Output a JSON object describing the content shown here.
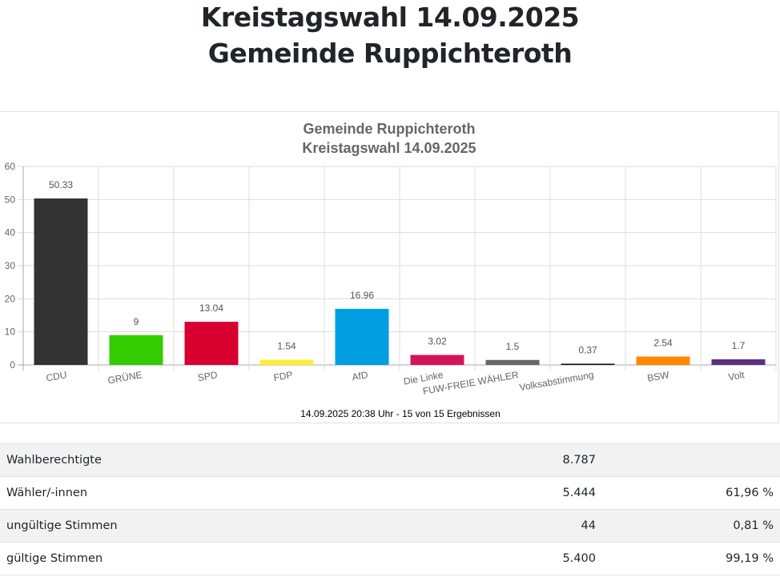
{
  "page": {
    "title_line1": "Kreistagswahl 14.09.2025",
    "title_line2": "Gemeinde Ruppichteroth"
  },
  "chart_data": {
    "type": "bar",
    "title": "Gemeinde Ruppichteroth",
    "subtitle": "Kreistagswahl 14.09.2025",
    "xlabel": "",
    "ylabel": "",
    "ylim": [
      0,
      60
    ],
    "yticks": [
      0,
      10,
      20,
      30,
      40,
      50,
      60
    ],
    "grid": true,
    "categories": [
      "CDU",
      "GRÜNE",
      "SPD",
      "FDP",
      "AfD",
      "Die Linke",
      "FUW-FREIE WÄHLER",
      "Volksabstimmung",
      "BSW",
      "Volt"
    ],
    "values": [
      50.33,
      9,
      13.04,
      1.54,
      16.96,
      3.02,
      1.5,
      0.37,
      2.54,
      1.7
    ],
    "value_labels": [
      "50.33",
      "9",
      "13.04",
      "1.54",
      "16.96",
      "3.02",
      "1.5",
      "0.37",
      "2.54",
      "1.7"
    ],
    "colors": [
      "#333333",
      "#33cc00",
      "#d7002f",
      "#ffed33",
      "#009ee0",
      "#d4145a",
      "#666666",
      "#111111",
      "#ff8800",
      "#5a2e82"
    ],
    "footer": "14.09.2025 20:38 Uhr - 15 von 15 Ergebnissen"
  },
  "stats": {
    "rows": [
      {
        "label": "Wahlberechtigte",
        "count": "8.787",
        "percent": ""
      },
      {
        "label": "Wähler/-innen",
        "count": "5.444",
        "percent": "61,96 %"
      },
      {
        "label": "ungültige Stimmen",
        "count": "44",
        "percent": "0,81 %"
      },
      {
        "label": "gültige Stimmen",
        "count": "5.400",
        "percent": "99,19 %"
      }
    ]
  }
}
